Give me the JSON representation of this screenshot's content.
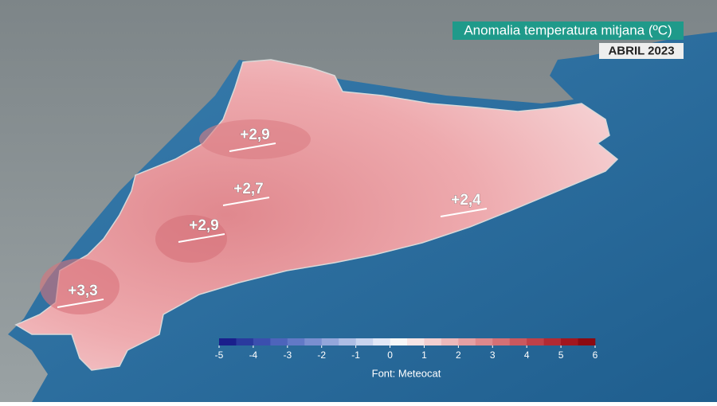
{
  "title": "Anomalia temperatura mitjana (ºC)",
  "subtitle": "ABRIL 2023",
  "annotations": [
    "+2,9",
    "+2,7",
    "+2,9",
    "+2,4",
    "+3,3"
  ],
  "colorbar": {
    "ticks": [
      -5,
      -4,
      -3,
      -2,
      -1,
      0,
      1,
      2,
      3,
      4,
      5,
      6
    ],
    "range": [
      -5,
      6
    ],
    "colors": [
      "#1a1f8c",
      "#2a3a9e",
      "#3b4fae",
      "#4d64bb",
      "#6279c6",
      "#7a8fd0",
      "#94a6da",
      "#aebde4",
      "#c8d3ee",
      "#e1e7f6",
      "#f7f7f7",
      "#f7e4e4",
      "#f2cfd0",
      "#ecb8ba",
      "#e5a0a3",
      "#dd888c",
      "#d47075",
      "#ca585e",
      "#bf4048",
      "#b22a33",
      "#a2161f",
      "#8c0a12"
    ]
  },
  "source": "Font: Meteocat"
}
